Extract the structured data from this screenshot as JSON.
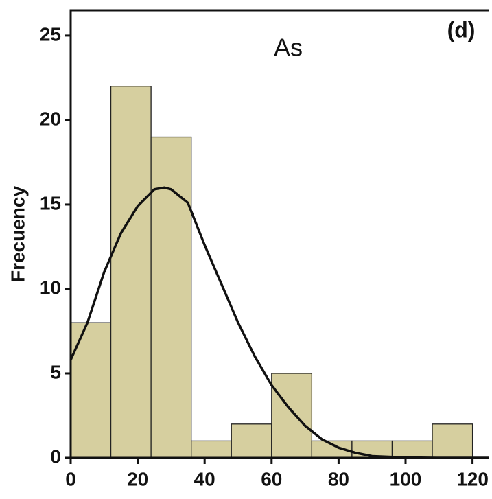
{
  "chart_data": {
    "type": "histogram",
    "title": "As",
    "annotation": "(d)",
    "y_label": "Frecuency",
    "bins": [
      0,
      12,
      24,
      36,
      48,
      60,
      72,
      84,
      96,
      108,
      120
    ],
    "values": [
      8,
      22,
      19,
      1,
      2,
      5,
      1,
      1,
      1,
      2
    ],
    "color": "#d6cf9f",
    "curve": {
      "color": "#111111",
      "x": [
        0,
        5,
        10,
        15,
        20,
        25,
        28,
        30,
        35,
        40,
        45,
        50,
        55,
        60,
        65,
        70,
        75,
        80,
        85,
        90,
        100,
        110,
        125
      ],
      "values": [
        5.8,
        8,
        11,
        13.3,
        14.9,
        15.9,
        16,
        15.9,
        15.1,
        12.6,
        10.3,
        8,
        6,
        4.3,
        3,
        1.9,
        1.1,
        0.6,
        0.3,
        0.1,
        0.02,
        0,
        0
      ]
    },
    "xlim": [
      0,
      125
    ],
    "ylim": [
      0,
      26.5
    ],
    "xticks": [
      0,
      20,
      40,
      60,
      80,
      100,
      120
    ],
    "yticks": [
      0,
      5,
      10,
      15,
      20,
      25
    ]
  }
}
